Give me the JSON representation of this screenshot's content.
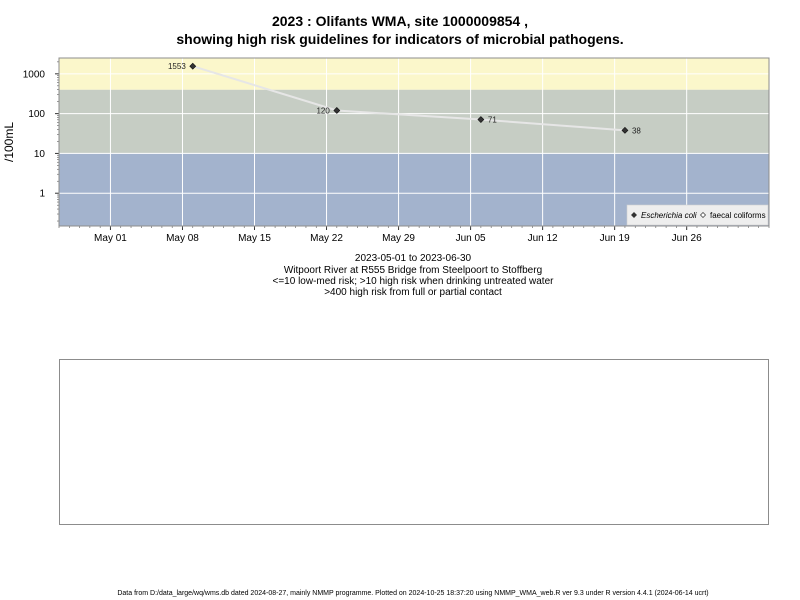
{
  "title_line1": "2023 : Olifants WMA, site 1000009854 ,",
  "title_line2": "showing high risk guidelines for indicators of microbial pathogens.",
  "captions": {
    "date_range": "2023-05-01 to 2023-06-30",
    "site": "Witpoort River at R555 Bridge from Steelpoort to Stoffberg",
    "risk_low": "<=10 low-med risk; >10 high risk when drinking untreated water",
    "risk_high": ">400 high risk from full or partial contact"
  },
  "footer": "Data from D:/data_large/wq/wms.db dated 2024-08-27, mainly NMMP programme. Plotted on 2024-10-25 18:37:20 using NMMP_WMA_web.R ver 9.3 under R version 4.4.1 (2024-06-14 ucrt)",
  "chart_data": {
    "type": "line",
    "ylabel": "/100mL",
    "y_scale": "log",
    "ylim": [
      0.15,
      2500
    ],
    "xlim": [
      "2023-04-26",
      "2023-07-04"
    ],
    "y_ticks": [
      1,
      10,
      100,
      1000
    ],
    "y_tick_labels": [
      "1",
      "10",
      "100",
      "1000"
    ],
    "x_ticks": [
      "2023-05-01",
      "2023-05-08",
      "2023-05-15",
      "2023-05-22",
      "2023-05-29",
      "2023-06-05",
      "2023-06-12",
      "2023-06-19",
      "2023-06-26"
    ],
    "x_tick_labels": [
      "May 01",
      "May 08",
      "May 15",
      "May 22",
      "May 29",
      "Jun 05",
      "Jun 12",
      "Jun 19",
      "Jun 26"
    ],
    "bands": [
      {
        "from": 0.15,
        "to": 10,
        "color": "#a3b3cd"
      },
      {
        "from": 10,
        "to": 400,
        "color": "#c6cdc4"
      },
      {
        "from": 400,
        "to": 2500,
        "color": "#fbf7cb"
      }
    ],
    "grid": true,
    "legend_position": "bottom-right",
    "legend": [
      {
        "label": "Escherichia coli",
        "italic": true,
        "marker": "diamond-filled"
      },
      {
        "label": "faecal coliforms",
        "italic": false,
        "marker": "diamond-open"
      }
    ],
    "line_color": "#e6e6e6",
    "marker_color": "#333333",
    "series": [
      {
        "name": "Escherichia coli",
        "x": [
          "2023-05-09",
          "2023-05-23",
          "2023-06-06",
          "2023-06-20"
        ],
        "y": [
          1553,
          120,
          71,
          38
        ],
        "labels": [
          "1553",
          "120",
          "71",
          "38"
        ],
        "label_side": [
          "left",
          "left",
          "right",
          "right"
        ]
      }
    ]
  }
}
